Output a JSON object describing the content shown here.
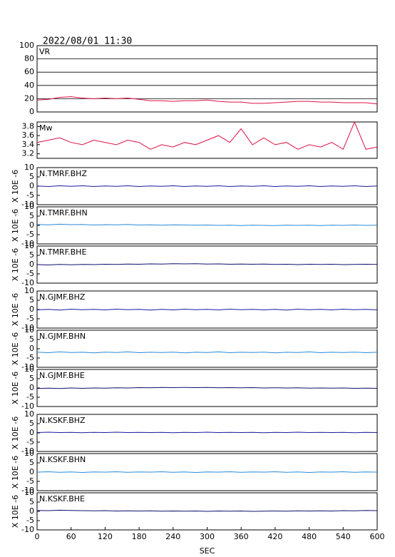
{
  "title": "2022/08/01 11:30",
  "chart_data": [
    {
      "type": "line",
      "title": "VR",
      "color": "#dd1144",
      "grid": true,
      "xlim": [
        0,
        600
      ],
      "ylim": [
        0,
        100
      ],
      "yticks": [
        0,
        20,
        40,
        60,
        80,
        100
      ],
      "x": [
        0,
        20,
        40,
        60,
        80,
        100,
        120,
        140,
        160,
        180,
        200,
        220,
        240,
        260,
        280,
        300,
        320,
        340,
        360,
        380,
        400,
        420,
        440,
        460,
        480,
        500,
        520,
        540,
        560,
        580,
        600
      ],
      "values": [
        18,
        19,
        22,
        23,
        21,
        20,
        21,
        20,
        21,
        19,
        17,
        17,
        16,
        17,
        17,
        18,
        16,
        15,
        15,
        13,
        13,
        14,
        15,
        16,
        16,
        15,
        15,
        14,
        14,
        14,
        12
      ]
    },
    {
      "type": "line",
      "title": "Mw",
      "color": "#dd1144",
      "xlim": [
        0,
        600
      ],
      "ylim": [
        3.1,
        3.9
      ],
      "yticks": [
        3.2,
        3.4,
        3.6,
        3.8
      ],
      "x": [
        0,
        20,
        40,
        60,
        80,
        100,
        120,
        140,
        160,
        180,
        200,
        220,
        240,
        260,
        280,
        300,
        320,
        340,
        360,
        380,
        400,
        420,
        440,
        460,
        480,
        500,
        520,
        540,
        560,
        580,
        600
      ],
      "values": [
        3.45,
        3.5,
        3.55,
        3.45,
        3.4,
        3.5,
        3.45,
        3.4,
        3.5,
        3.45,
        3.3,
        3.4,
        3.35,
        3.45,
        3.4,
        3.5,
        3.6,
        3.45,
        3.75,
        3.4,
        3.55,
        3.4,
        3.45,
        3.3,
        3.4,
        3.35,
        3.45,
        3.3,
        3.9,
        3.3,
        3.35
      ]
    },
    {
      "type": "line",
      "title": "N.TMRF.BHZ",
      "ylabel": "X 10E -6",
      "color": "#1a1aa0",
      "xlim": [
        0,
        600
      ],
      "ylim": [
        -10,
        10
      ],
      "yticks": [
        -10,
        -5,
        0,
        5,
        10
      ],
      "x": [
        0,
        20,
        40,
        60,
        80,
        100,
        120,
        140,
        160,
        180,
        200,
        220,
        240,
        260,
        280,
        300,
        320,
        340,
        360,
        380,
        400,
        420,
        440,
        460,
        480,
        500,
        520,
        540,
        560,
        580,
        600
      ],
      "values": [
        0.1,
        -0.2,
        0.2,
        -0.1,
        0.2,
        -0.2,
        0.1,
        -0.1,
        0.2,
        -0.2,
        0.1,
        -0.1,
        0.2,
        -0.2,
        0.1,
        -0.1,
        0.2,
        -0.2,
        0.1,
        -0.1,
        0.2,
        -0.2,
        0.1,
        -0.1,
        0.2,
        -0.2,
        0.1,
        -0.1,
        0.2,
        -0.2,
        0.1
      ]
    },
    {
      "type": "line",
      "title": "N.TMRF.BHN",
      "ylabel": "X 10E -6",
      "color": "#2a8ad8",
      "xlim": [
        0,
        600
      ],
      "ylim": [
        -10,
        10
      ],
      "yticks": [
        -10,
        -5,
        0,
        5,
        10
      ],
      "x": [
        0,
        20,
        40,
        60,
        80,
        100,
        120,
        140,
        160,
        180,
        200,
        220,
        240,
        260,
        280,
        300,
        320,
        340,
        360,
        380,
        400,
        420,
        440,
        460,
        480,
        500,
        520,
        540,
        560,
        580,
        600
      ],
      "values": [
        0.5,
        0.3,
        0.6,
        0.4,
        0.5,
        0.2,
        0.4,
        0.3,
        0.5,
        0.2,
        0.3,
        0.1,
        0.3,
        0.2,
        0.1,
        0.2,
        0,
        0.1,
        -0.1,
        0.1,
        0,
        -0.1,
        0.1,
        0,
        0.1,
        -0.1,
        0.1,
        0,
        0.2,
        0,
        0.1
      ]
    },
    {
      "type": "line",
      "title": "N.TMRF.BHE",
      "ylabel": "X 10E -6",
      "color": "#101070",
      "xlim": [
        0,
        600
      ],
      "ylim": [
        -10,
        10
      ],
      "yticks": [
        -10,
        -5,
        0,
        5,
        10
      ],
      "x": [
        0,
        20,
        40,
        60,
        80,
        100,
        120,
        140,
        160,
        180,
        200,
        220,
        240,
        260,
        280,
        300,
        320,
        340,
        360,
        380,
        400,
        420,
        440,
        460,
        480,
        500,
        520,
        540,
        560,
        580,
        600
      ],
      "values": [
        0,
        -0.2,
        0.1,
        -0.1,
        0.1,
        0,
        0.2,
        0.1,
        0.3,
        0.2,
        0.4,
        0.3,
        0.5,
        0.4,
        0.5,
        0.3,
        0.4,
        0.2,
        0.3,
        0.2,
        0.3,
        0.1,
        0.2,
        0,
        0.2,
        0.1,
        0.2,
        0,
        0.1,
        0.2,
        0.1
      ]
    },
    {
      "type": "line",
      "title": "N.GJMF.BHZ",
      "ylabel": "X 10E -6",
      "color": "#1a1aa0",
      "xlim": [
        0,
        600
      ],
      "ylim": [
        -10,
        10
      ],
      "yticks": [
        -10,
        -5,
        0,
        5,
        10
      ],
      "x": [
        0,
        20,
        40,
        60,
        80,
        100,
        120,
        140,
        160,
        180,
        200,
        220,
        240,
        260,
        280,
        300,
        320,
        340,
        360,
        380,
        400,
        420,
        440,
        460,
        480,
        500,
        520,
        540,
        560,
        580,
        600
      ],
      "values": [
        -0.2,
        0.1,
        -0.3,
        0.2,
        -0.1,
        0.1,
        -0.2,
        0.2,
        -0.1,
        0.1,
        -0.3,
        0.1,
        -0.2,
        0.2,
        -0.1,
        0.1,
        -0.2,
        0.2,
        -0.1,
        0.1,
        -0.2,
        0.1,
        -0.3,
        0.2,
        -0.1,
        0.1,
        -0.2,
        0.2,
        -0.1,
        0.1,
        -0.2
      ]
    },
    {
      "type": "line",
      "title": "N.GJMF.BHN",
      "ylabel": "X 10E -6",
      "color": "#2a8ad8",
      "xlim": [
        0,
        600
      ],
      "ylim": [
        -10,
        10
      ],
      "yticks": [
        -10,
        -5,
        0,
        5,
        10
      ],
      "x": [
        0,
        20,
        40,
        60,
        80,
        100,
        120,
        140,
        160,
        180,
        200,
        220,
        240,
        260,
        280,
        300,
        320,
        340,
        360,
        380,
        400,
        420,
        440,
        460,
        480,
        500,
        520,
        540,
        560,
        580,
        600
      ],
      "values": [
        -1.8,
        -2.1,
        -1.7,
        -2.0,
        -1.9,
        -2.2,
        -1.8,
        -2.0,
        -1.7,
        -2.1,
        -1.9,
        -2.0,
        -1.8,
        -2.2,
        -1.9,
        -2.0,
        -1.7,
        -2.1,
        -1.9,
        -2.0,
        -1.8,
        -2.2,
        -1.9,
        -2.0,
        -1.7,
        -2.1,
        -1.9,
        -2.0,
        -1.8,
        -2.1,
        -1.9
      ]
    },
    {
      "type": "line",
      "title": "N.GJMF.BHE",
      "ylabel": "X 10E -6",
      "color": "#101070",
      "xlim": [
        0,
        600
      ],
      "ylim": [
        -10,
        10
      ],
      "yticks": [
        -10,
        -5,
        0,
        5,
        10
      ],
      "x": [
        0,
        20,
        40,
        60,
        80,
        100,
        120,
        140,
        160,
        180,
        200,
        220,
        240,
        260,
        280,
        300,
        320,
        340,
        360,
        380,
        400,
        420,
        440,
        460,
        480,
        500,
        520,
        540,
        560,
        580,
        600
      ],
      "values": [
        -0.3,
        -0.1,
        -0.3,
        0,
        -0.2,
        0,
        -0.1,
        0.1,
        0,
        0.2,
        0.1,
        0.3,
        0.2,
        0.3,
        0.2,
        0.3,
        0.1,
        0.2,
        0.1,
        0.2,
        0,
        0.1,
        0,
        0.1,
        -0.1,
        0,
        -0.1,
        0,
        -0.2,
        -0.1,
        -0.2
      ]
    },
    {
      "type": "line",
      "title": "N.KSKF.BHZ",
      "ylabel": "X 10E -6",
      "color": "#1a1aa0",
      "xlim": [
        0,
        600
      ],
      "ylim": [
        -10,
        10
      ],
      "yticks": [
        -10,
        -5,
        0,
        5,
        10
      ],
      "x": [
        0,
        20,
        40,
        60,
        80,
        100,
        120,
        140,
        160,
        180,
        200,
        220,
        240,
        260,
        280,
        300,
        320,
        340,
        360,
        380,
        400,
        420,
        440,
        460,
        480,
        500,
        520,
        540,
        560,
        580,
        600
      ],
      "values": [
        0.2,
        0.4,
        0.2,
        0.3,
        0.1,
        0.3,
        0.2,
        0.4,
        0.2,
        0.3,
        0.2,
        0.3,
        0.1,
        0.3,
        0.2,
        0.4,
        0.2,
        0.3,
        0.2,
        0.3,
        0.1,
        0.3,
        0.2,
        0.4,
        0.2,
        0.3,
        0.2,
        0.3,
        0.1,
        0.3,
        0.2
      ]
    },
    {
      "type": "line",
      "title": "N.KSKF.BHN",
      "ylabel": "X 10E -6",
      "color": "#2a8ad8",
      "xlim": [
        0,
        600
      ],
      "ylim": [
        -10,
        10
      ],
      "yticks": [
        -10,
        -5,
        0,
        5,
        10
      ],
      "x": [
        0,
        20,
        40,
        60,
        80,
        100,
        120,
        140,
        160,
        180,
        200,
        220,
        240,
        260,
        280,
        300,
        320,
        340,
        360,
        380,
        400,
        420,
        440,
        460,
        480,
        500,
        520,
        540,
        560,
        580,
        600
      ],
      "values": [
        0,
        0.2,
        -0.1,
        0.1,
        -0.2,
        0.1,
        0,
        0.2,
        -0.1,
        0.1,
        0,
        0.2,
        -0.1,
        0.1,
        -0.2,
        0.1,
        0,
        0.2,
        -0.1,
        0.1,
        0,
        0.2,
        -0.1,
        0.1,
        -0.2,
        0.1,
        0,
        0.2,
        -0.1,
        0.1,
        0
      ]
    },
    {
      "type": "line",
      "title": "N.KSKF.BHE",
      "ylabel": "X 10E -6",
      "xlabel": "SEC",
      "color": "#101070",
      "xlim": [
        0,
        600
      ],
      "ylim": [
        -10,
        10
      ],
      "yticks": [
        -10,
        -5,
        0,
        5,
        10
      ],
      "xticks": [
        0,
        60,
        120,
        180,
        240,
        300,
        360,
        420,
        480,
        540,
        600
      ],
      "x": [
        0,
        20,
        40,
        60,
        80,
        100,
        120,
        140,
        160,
        180,
        200,
        220,
        240,
        260,
        280,
        300,
        320,
        340,
        360,
        380,
        400,
        420,
        440,
        460,
        480,
        500,
        520,
        540,
        560,
        580,
        600
      ],
      "values": [
        0.5,
        0.4,
        0.6,
        0.5,
        0.4,
        0.3,
        0.4,
        0.2,
        0.3,
        0.2,
        0.3,
        0.1,
        0.2,
        0.1,
        0.2,
        0,
        0.2,
        0.1,
        0.2,
        0,
        0.1,
        0.2,
        0.1,
        0.3,
        0.2,
        0.3,
        0.2,
        0.4,
        0.3,
        0.5,
        0.4
      ]
    }
  ]
}
